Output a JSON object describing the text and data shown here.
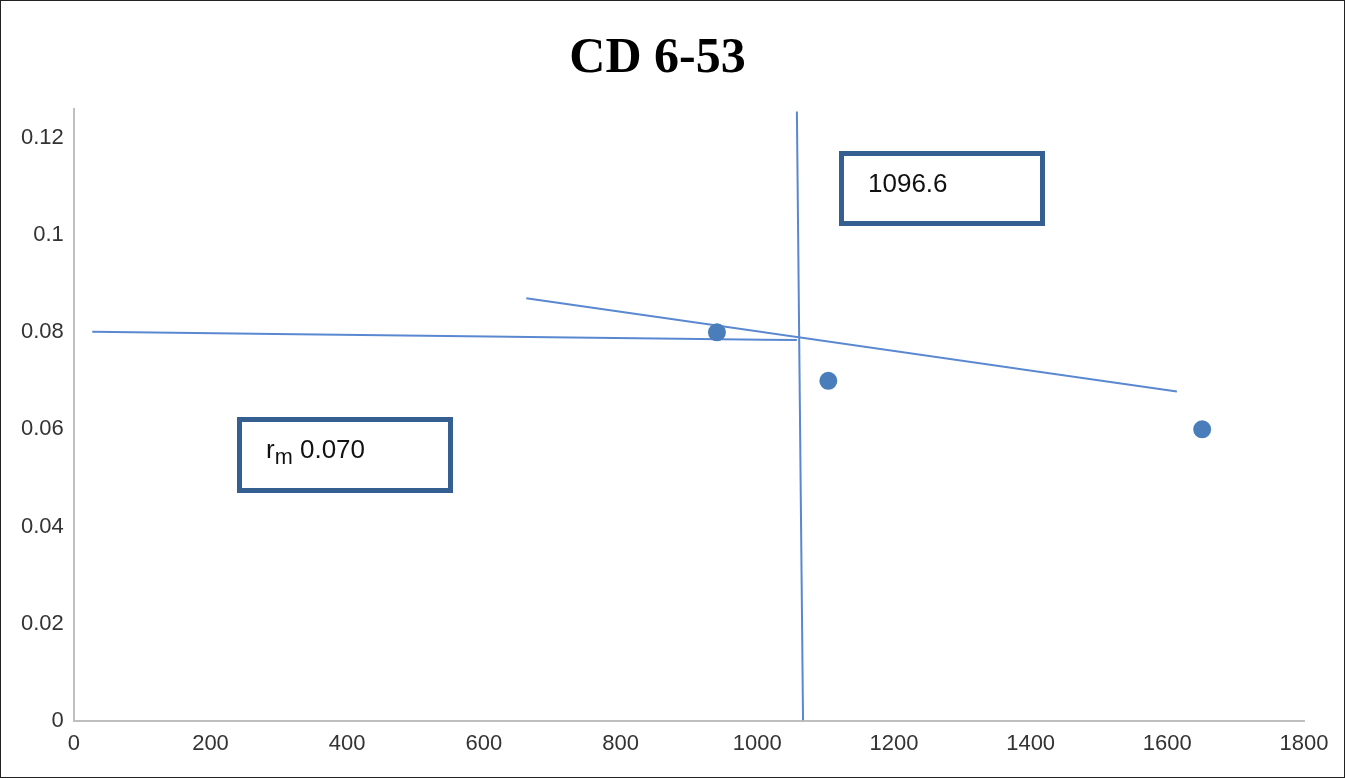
{
  "chart_data": {
    "type": "scatter",
    "title": "CD 6-53",
    "series": [
      {
        "color": "#4a7ebb",
        "x": [
          941,
          1104,
          1651
        ],
        "values": [
          0.08,
          0.07,
          0.06
        ],
        "marker": "circle"
      },
      {
        "type": "line",
        "color": "#5a88d0",
        "x": [
          27,
          1058
        ],
        "values": [
          0.0801,
          0.0784
        ],
        "marker": "none"
      },
      {
        "type": "line",
        "color": "#5a88d0",
        "x": [
          662,
          1614
        ],
        "values": [
          0.087,
          0.0678
        ],
        "marker": "none"
      },
      {
        "type": "line",
        "color": "#5a88d0",
        "x": [
          1058,
          1067
        ],
        "values": [
          0.1255,
          0
        ],
        "marker": "none"
      }
    ],
    "xlim": [
      0,
      1800
    ],
    "xticks": [
      0,
      200,
      400,
      600,
      800,
      1000,
      1200,
      1400,
      1600,
      1800
    ],
    "ylim": [
      0,
      0.126
    ],
    "yticks": [
      0,
      0.02,
      0.04,
      0.06,
      0.08,
      0.1,
      0.12
    ],
    "grid": false,
    "legend": false,
    "annotations": [
      "1096.6",
      "r$_{m}$ 0.070"
    ]
  }
}
